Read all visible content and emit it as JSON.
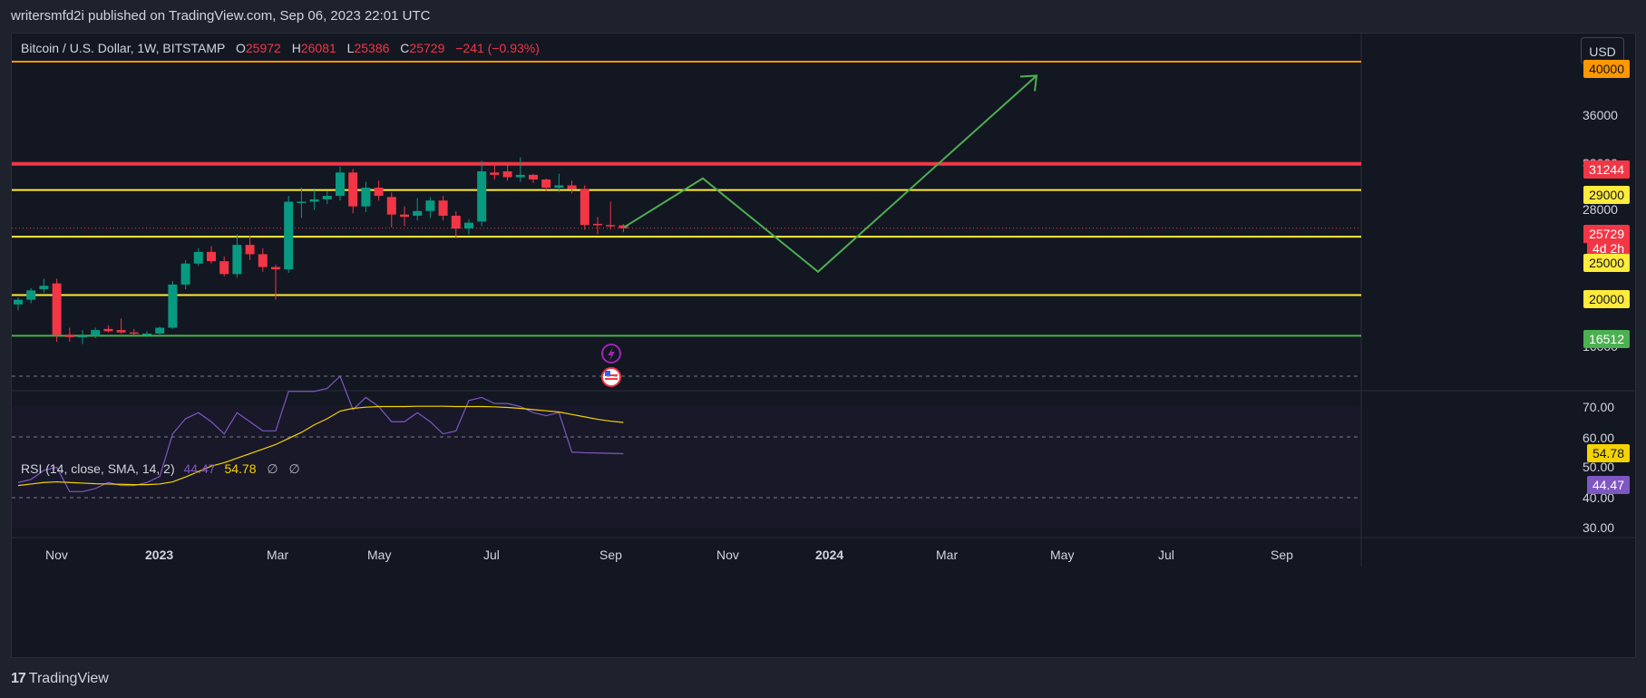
{
  "header": {
    "published": "writersmfd2i published on TradingView.com, Sep 06, 2023 22:01 UTC"
  },
  "legend": {
    "symbol": "Bitcoin / U.S. Dollar, 1W, BITSTAMP",
    "o_key": "O",
    "o_val": "25972",
    "h_key": "H",
    "h_val": "26081",
    "l_key": "L",
    "l_val": "25386",
    "c_key": "C",
    "c_val": "25729",
    "change": "−241 (−0.93%)"
  },
  "currency_button": "USD",
  "rsi_legend": {
    "label": "RSI (14, close, SMA, 14, 2)",
    "rsi": "44.47",
    "sma": "54.78",
    "n1": "∅",
    "n2": "∅"
  },
  "price_axis": {
    "ticks": [
      "36000",
      "32000",
      "28000",
      "16000"
    ]
  },
  "rsi_axis": {
    "ticks": [
      "70.00",
      "60.00",
      "50.00",
      "40.00",
      "30.00"
    ]
  },
  "time_axis": {
    "labels": [
      "Nov",
      "2023",
      "Mar",
      "May",
      "Jul",
      "Sep",
      "Nov",
      "2024",
      "Mar",
      "May",
      "Jul",
      "Sep"
    ]
  },
  "price_labels": {
    "l40000": "40000",
    "l31244": "31244",
    "l29000": "29000",
    "current": "25729",
    "countdown": "4d 2h",
    "l25000": "25000",
    "l20000": "20000",
    "l16512": "16512"
  },
  "rsi_labels": {
    "sma": "54.78",
    "rsi": "44.47"
  },
  "footer": {
    "brand": "TradingView",
    "logo_mark": "17"
  },
  "colors": {
    "up": "#089981",
    "down": "#f23645",
    "orange": "#ff9800",
    "yellow": "#ffeb3b",
    "green_line": "#4caf50",
    "rsi": "#7e57c2",
    "sma": "#f5d300"
  },
  "chart_data": {
    "type": "candlestick",
    "symbol": "Bitcoin / U.S. Dollar",
    "interval": "1W",
    "exchange": "BITSTAMP",
    "candles": [
      {
        "o": 19200,
        "h": 19800,
        "l": 18700,
        "c": 19600
      },
      {
        "o": 19600,
        "h": 20600,
        "l": 19300,
        "c": 20400
      },
      {
        "o": 20500,
        "h": 21400,
        "l": 20200,
        "c": 20800
      },
      {
        "o": 21000,
        "h": 21400,
        "l": 16000,
        "c": 16600
      },
      {
        "o": 16600,
        "h": 17200,
        "l": 16000,
        "c": 16400
      },
      {
        "o": 16400,
        "h": 17000,
        "l": 15800,
        "c": 16500
      },
      {
        "o": 16500,
        "h": 17200,
        "l": 16300,
        "c": 17000
      },
      {
        "o": 17100,
        "h": 17400,
        "l": 16800,
        "c": 16900
      },
      {
        "o": 17000,
        "h": 18000,
        "l": 16700,
        "c": 16800
      },
      {
        "o": 16800,
        "h": 17100,
        "l": 16500,
        "c": 16700
      },
      {
        "o": 16600,
        "h": 16900,
        "l": 16400,
        "c": 16700
      },
      {
        "o": 16700,
        "h": 17300,
        "l": 16500,
        "c": 17200
      },
      {
        "o": 17200,
        "h": 21200,
        "l": 17100,
        "c": 20900
      },
      {
        "o": 20900,
        "h": 23000,
        "l": 20500,
        "c": 22700
      },
      {
        "o": 22700,
        "h": 24000,
        "l": 22500,
        "c": 23700
      },
      {
        "o": 23700,
        "h": 24200,
        "l": 22700,
        "c": 22900
      },
      {
        "o": 22900,
        "h": 23300,
        "l": 21600,
        "c": 21800
      },
      {
        "o": 21800,
        "h": 25200,
        "l": 21500,
        "c": 24300
      },
      {
        "o": 24300,
        "h": 25100,
        "l": 23000,
        "c": 23500
      },
      {
        "o": 23500,
        "h": 24000,
        "l": 22000,
        "c": 22400
      },
      {
        "o": 22400,
        "h": 22600,
        "l": 19600,
        "c": 22200
      },
      {
        "o": 22200,
        "h": 28500,
        "l": 21900,
        "c": 28000
      },
      {
        "o": 28000,
        "h": 29200,
        "l": 26600,
        "c": 28000
      },
      {
        "o": 28000,
        "h": 29000,
        "l": 27300,
        "c": 28200
      },
      {
        "o": 28200,
        "h": 28900,
        "l": 27800,
        "c": 28500
      },
      {
        "o": 28500,
        "h": 31000,
        "l": 28100,
        "c": 30500
      },
      {
        "o": 30500,
        "h": 30800,
        "l": 27000,
        "c": 27600
      },
      {
        "o": 27600,
        "h": 29700,
        "l": 27100,
        "c": 29200
      },
      {
        "o": 29200,
        "h": 29800,
        "l": 28100,
        "c": 28500
      },
      {
        "o": 28400,
        "h": 28800,
        "l": 25800,
        "c": 26900
      },
      {
        "o": 26900,
        "h": 27600,
        "l": 25900,
        "c": 26700
      },
      {
        "o": 26800,
        "h": 28300,
        "l": 26400,
        "c": 27200
      },
      {
        "o": 27200,
        "h": 28400,
        "l": 26600,
        "c": 28100
      },
      {
        "o": 28100,
        "h": 28500,
        "l": 26400,
        "c": 26800
      },
      {
        "o": 26800,
        "h": 27200,
        "l": 24900,
        "c": 25700
      },
      {
        "o": 25700,
        "h": 26500,
        "l": 25200,
        "c": 26200
      },
      {
        "o": 26300,
        "h": 31500,
        "l": 25900,
        "c": 30600
      },
      {
        "o": 30500,
        "h": 31300,
        "l": 29900,
        "c": 30300
      },
      {
        "o": 30600,
        "h": 31400,
        "l": 29800,
        "c": 30100
      },
      {
        "o": 30100,
        "h": 31800,
        "l": 29700,
        "c": 30300
      },
      {
        "o": 30300,
        "h": 30400,
        "l": 29600,
        "c": 29900
      },
      {
        "o": 29900,
        "h": 30000,
        "l": 28900,
        "c": 29200
      },
      {
        "o": 29200,
        "h": 30400,
        "l": 28800,
        "c": 29400
      },
      {
        "o": 29400,
        "h": 29800,
        "l": 28700,
        "c": 29100
      },
      {
        "o": 29100,
        "h": 29400,
        "l": 25600,
        "c": 26000
      },
      {
        "o": 26100,
        "h": 26700,
        "l": 25200,
        "c": 26000
      },
      {
        "o": 26000,
        "h": 28000,
        "l": 25600,
        "c": 25900
      },
      {
        "o": 25972,
        "h": 26081,
        "l": 25386,
        "c": 25729
      }
    ],
    "horizontal_levels": [
      {
        "price": 40000,
        "color": "#ff9800"
      },
      {
        "price": 31244,
        "color": "#f23645"
      },
      {
        "price": 29000,
        "color": "#ffeb3b"
      },
      {
        "price": 25000,
        "color": "#ffeb3b"
      },
      {
        "price": 20000,
        "color": "#ffeb3b"
      },
      {
        "price": 16512,
        "color": "#4caf50"
      }
    ],
    "projection_path": [
      {
        "time": "2023-09",
        "price": 25800
      },
      {
        "time": "2023-10",
        "price": 30000
      },
      {
        "time": "2023-12",
        "price": 22000
      },
      {
        "time": "2024-04",
        "price": 38800
      }
    ],
    "rsi": {
      "period": 14,
      "values": [
        35,
        36,
        39,
        40,
        32,
        32,
        33,
        35,
        34,
        34,
        35,
        37,
        51,
        56,
        58,
        55,
        51,
        58,
        55,
        52,
        52,
        65,
        65,
        65,
        66,
        70,
        59,
        63,
        60,
        55,
        55,
        58,
        55,
        51,
        52,
        62,
        63,
        61,
        61,
        60,
        58,
        57,
        58,
        45,
        44.8,
        44.7,
        44.6,
        44.47
      ],
      "sma": [
        34,
        34.5,
        35,
        35.2,
        35,
        34.8,
        34.6,
        34.5,
        34.4,
        34.3,
        34.3,
        34.5,
        35.2,
        36.8,
        38.6,
        40.4,
        41.5,
        43,
        44.5,
        46,
        47.5,
        49.5,
        51.5,
        54,
        56,
        58.5,
        59.4,
        59.8,
        60,
        60,
        60,
        60.1,
        60.1,
        60.1,
        60,
        60,
        60,
        59.9,
        59.7,
        59.4,
        59,
        58.6,
        58.2,
        57.4,
        56.6,
        55.8,
        55.2,
        54.78
      ],
      "levels": [
        70,
        50,
        30
      ]
    },
    "price_axis_ticks": [
      36000,
      32000,
      28000,
      16000
    ],
    "rsi_axis_ticks": [
      70,
      60,
      50,
      40,
      30
    ],
    "time_labels": [
      "Nov",
      "2023",
      "Mar",
      "May",
      "Jul",
      "Sep",
      "Nov",
      "2024",
      "Mar",
      "May",
      "Jul",
      "Sep"
    ]
  }
}
